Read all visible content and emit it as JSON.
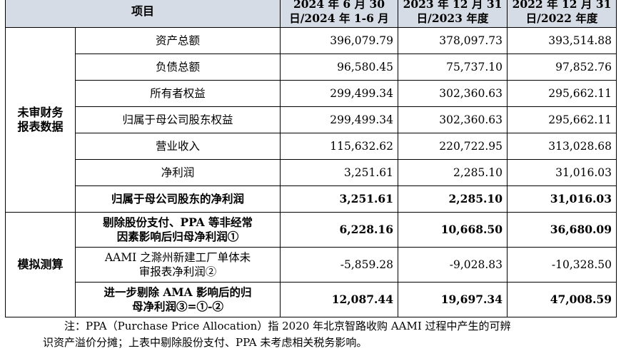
{
  "table": {
    "header": {
      "item": "项目",
      "col1": {
        "line1": "2024 年 6 月 30",
        "line2": "日/2024 年 1-6 月"
      },
      "col2": {
        "line1": "2023 年 12 月 31",
        "line2": "日/2023 年度"
      },
      "col3": {
        "line1": "2022 年 12 月 31",
        "line2": "日/2022 年度"
      }
    },
    "groups": {
      "unaudited": {
        "line1": "未审财务",
        "line2": "报表数据"
      },
      "simulation": "模拟测算"
    },
    "rows": [
      {
        "item": "资产总额",
        "v1": "396,079.79",
        "v2": "378,097.73",
        "v3": "393,514.88"
      },
      {
        "item": "负债总额",
        "v1": "96,580.45",
        "v2": "75,737.10",
        "v3": "97,852.76"
      },
      {
        "item": "所有者权益",
        "v1": "299,499.34",
        "v2": "302,360.63",
        "v3": "295,662.11"
      },
      {
        "item": "归属于母公司股东权益",
        "v1": "299,499.34",
        "v2": "302,360.63",
        "v3": "295,662.11"
      },
      {
        "item": "营业收入",
        "v1": "115,632.62",
        "v2": "220,722.95",
        "v3": "313,028.68"
      },
      {
        "item": "净利润",
        "v1": "3,251.61",
        "v2": "2,285.10",
        "v3": "31,016.03"
      },
      {
        "item": "归属于母公司股东的净利润",
        "v1": "3,251.61",
        "v2": "2,285.10",
        "v3": "31,016.03"
      },
      {
        "item_line1": "剔除股份支付、PPA 等非经常",
        "item_line2": "因素影响后归母净利润①",
        "v1": "6,228.16",
        "v2": "10,668.50",
        "v3": "36,680.09"
      },
      {
        "item_line1": "AAMI 之滁州新建工厂单体未",
        "item_line2": "审报表净利润②",
        "v1": "-5,859.28",
        "v2": "-9,028.83",
        "v3": "-10,328.50"
      },
      {
        "item_line1": "进一步剔除 AMA 影响后的归",
        "item_line2": "母净利润③=①-②",
        "v1": "12,087.44",
        "v2": "19,697.34",
        "v3": "47,008.59"
      }
    ]
  },
  "note": {
    "line1": "注：PPA（Purchase Price Allocation）指 2020 年北京智路收购 AAMI 过程中产生的可辨",
    "line2": "识资产溢价分摊；上表中剔除股份支付、PPA 未考虑相关税务影响。"
  }
}
